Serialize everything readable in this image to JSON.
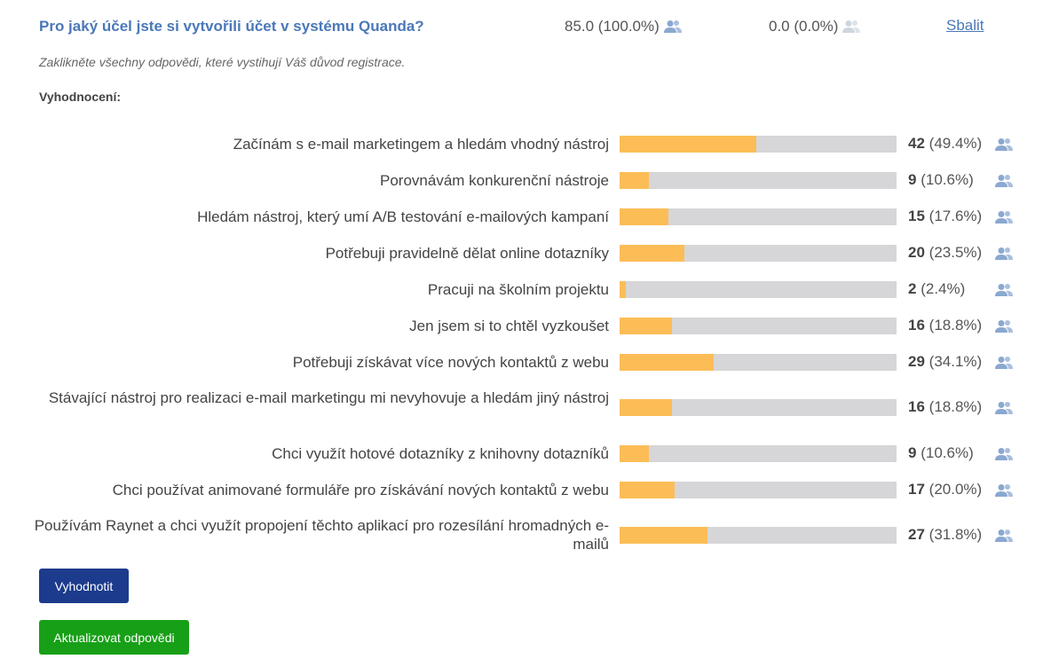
{
  "question": {
    "title": "Pro jaký účel jste si vytvořili účet v systému Quanda?",
    "responded": "85.0 (100.0%)",
    "not_responded": "0.0 (0.0%)",
    "collapse_label": "Sbalit",
    "hint": "Zaklikněte všechny odpovědi, které vystihují Váš důvod registrace.",
    "evaluation_label": "Vyhodnocení:"
  },
  "colors": {
    "bar_fill": "#fcbd57",
    "bar_track": "#d6d6d9",
    "title": "#4a78b8",
    "icon_active": "#8aa8d0",
    "icon_inactive": "#cfd6df"
  },
  "answers": [
    {
      "label": "Začínám s e-mail marketingem a hledám vhodný nástroj",
      "count": "42",
      "pct": "(49.4%)",
      "fraction": 0.494
    },
    {
      "label": "Porovnávám konkurenční nástroje",
      "count": "9",
      "pct": "(10.6%)",
      "fraction": 0.106
    },
    {
      "label": "Hledám nástroj, který umí A/B testování e-mailových kampaní",
      "count": "15",
      "pct": "(17.6%)",
      "fraction": 0.176
    },
    {
      "label": "Potřebuji pravidelně dělat online dotazníky",
      "count": "20",
      "pct": "(23.5%)",
      "fraction": 0.235
    },
    {
      "label": "Pracuji na školním projektu",
      "count": "2",
      "pct": "(2.4%)",
      "fraction": 0.024
    },
    {
      "label": "Jen jsem si to chtěl vyzkoušet",
      "count": "16",
      "pct": "(18.8%)",
      "fraction": 0.188
    },
    {
      "label": "Potřebuji získávat více nových kontaktů z webu",
      "count": "29",
      "pct": "(34.1%)",
      "fraction": 0.341
    },
    {
      "label": "Stávající nástroj pro realizaci e-mail marketingu mi nevyhovuje a hledám jiný nástroj",
      "count": "16",
      "pct": "(18.8%)",
      "fraction": 0.188
    },
    {
      "label": "Chci využít hotové dotazníky z knihovny dotazníků",
      "count": "9",
      "pct": "(10.6%)",
      "fraction": 0.106
    },
    {
      "label": "Chci používat animované formuláře pro získávání nových kontaktů z webu",
      "count": "17",
      "pct": "(20.0%)",
      "fraction": 0.2
    },
    {
      "label": "Používám Raynet a chci využít propojení těchto aplikací pro rozesílání hromadných e-mailů",
      "count": "27",
      "pct": "(31.8%)",
      "fraction": 0.318
    }
  ],
  "buttons": {
    "evaluate": "Vyhodnotit",
    "update": "Aktualizovat odpovědi"
  }
}
